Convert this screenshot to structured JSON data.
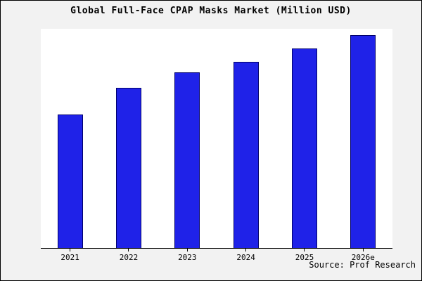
{
  "chart_data": {
    "type": "bar",
    "title": "Global Full-Face CPAP Masks Market (Million USD)",
    "categories": [
      "2021",
      "2022",
      "2023",
      "2024",
      "2025",
      "2026e"
    ],
    "values": [
      61,
      73,
      80,
      85,
      91,
      97
    ],
    "xlabel": "",
    "ylabel": "",
    "ylim": [
      0,
      100
    ],
    "y_axis_tick_labels_visible": false,
    "grid": false,
    "legend_position": "none",
    "bar_fill_color": "#1f22e8",
    "bar_border_color": "#00006a",
    "plot_background_color": "#ffffff",
    "page_background_color": "#f2f2f2"
  },
  "source": "Source: Prof Research"
}
